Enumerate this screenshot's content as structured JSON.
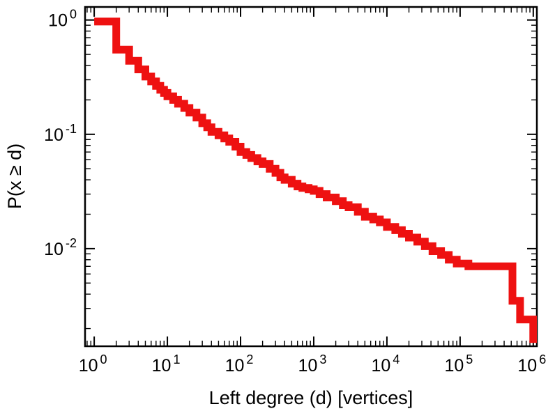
{
  "chart_data": {
    "type": "line",
    "subtype": "step-ccdf-loglog",
    "title": "",
    "xlabel": "Left degree (d) [vertices]",
    "ylabel": "P(x ≥ d)",
    "x_scale": "log",
    "y_scale": "log",
    "xlim": [
      0.75,
      1120000
    ],
    "ylim": [
      0.0014,
      1.3
    ],
    "grid": false,
    "legend": "none",
    "tick_base": "10",
    "x_tick_exponents": [
      0,
      1,
      2,
      3,
      4,
      5,
      6
    ],
    "y_tick_exponents": [
      0,
      -1,
      -2
    ],
    "line_color": "#ee1111",
    "line_width": 11,
    "frame_color": "#000000",
    "points": [
      [
        1,
        0.97
      ],
      [
        2,
        0.55
      ],
      [
        3,
        0.44
      ],
      [
        4,
        0.37
      ],
      [
        5,
        0.32
      ],
      [
        6,
        0.29
      ],
      [
        7,
        0.265
      ],
      [
        8,
        0.245
      ],
      [
        9,
        0.23
      ],
      [
        10,
        0.215
      ],
      [
        12,
        0.2
      ],
      [
        14,
        0.185
      ],
      [
        17,
        0.17
      ],
      [
        20,
        0.155
      ],
      [
        25,
        0.14
      ],
      [
        30,
        0.125
      ],
      [
        35,
        0.115
      ],
      [
        40,
        0.105
      ],
      [
        50,
        0.098
      ],
      [
        60,
        0.092
      ],
      [
        70,
        0.086
      ],
      [
        85,
        0.078
      ],
      [
        100,
        0.07
      ],
      [
        120,
        0.066
      ],
      [
        140,
        0.062
      ],
      [
        170,
        0.058
      ],
      [
        200,
        0.055
      ],
      [
        250,
        0.05
      ],
      [
        300,
        0.046
      ],
      [
        350,
        0.042
      ],
      [
        400,
        0.04
      ],
      [
        500,
        0.037
      ],
      [
        600,
        0.035
      ],
      [
        700,
        0.034
      ],
      [
        850,
        0.033
      ],
      [
        1000,
        0.032
      ],
      [
        1200,
        0.03
      ],
      [
        1500,
        0.028
      ],
      [
        2000,
        0.026
      ],
      [
        2500,
        0.024
      ],
      [
        3000,
        0.023
      ],
      [
        4000,
        0.021
      ],
      [
        5000,
        0.019
      ],
      [
        6500,
        0.018
      ],
      [
        8000,
        0.017
      ],
      [
        10000,
        0.0155
      ],
      [
        13000,
        0.0145
      ],
      [
        16000,
        0.0135
      ],
      [
        20000,
        0.0125
      ],
      [
        26000,
        0.0115
      ],
      [
        33000,
        0.0105
      ],
      [
        42000,
        0.0095
      ],
      [
        55000,
        0.0088
      ],
      [
        70000,
        0.008
      ],
      [
        90000,
        0.0074
      ],
      [
        130000,
        0.007
      ],
      [
        520000,
        0.0035
      ],
      [
        660000,
        0.0024
      ],
      [
        1000000,
        0.0015
      ]
    ]
  }
}
